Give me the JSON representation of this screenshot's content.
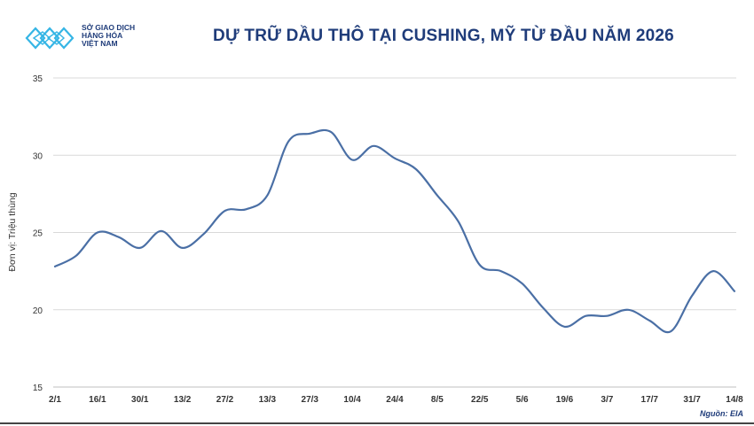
{
  "logo": {
    "icon": "sgd-chevron-logo",
    "line1": "SỞ GIAO DỊCH",
    "line2": "HÀNG HÓA",
    "line3": "VIỆT NAM",
    "color": "#35b5e5"
  },
  "title": "DỰ TRỮ DẦU THÔ TẠI CUSHING, MỸ TỪ ĐẦU NĂM 2026",
  "source": "Nguồn: EIA",
  "colors": {
    "line": "#4a6fa5",
    "title": "#1f3c7a",
    "grid": "#d9d9d9"
  },
  "chart_data": {
    "type": "line",
    "title": "DỰ TRỮ DẦU THÔ TẠI CUSHING, MỸ TỪ ĐẦU NĂM 2026",
    "xlabel": "",
    "ylabel": "Đơn vị: Triệu thùng",
    "ylim": [
      15,
      35
    ],
    "yticks": [
      "35",
      "30",
      "25",
      "20",
      "15"
    ],
    "grid": true,
    "legend": "none",
    "x_tick_labels": [
      "2/1",
      "16/1",
      "30/1",
      "13/2",
      "27/2",
      "13/3",
      "27/3",
      "10/4",
      "24/4",
      "8/5",
      "22/5",
      "5/6",
      "19/6",
      "3/7",
      "17/7",
      "31/7",
      "14/8"
    ],
    "x": [
      "2/1",
      "9/1",
      "16/1",
      "23/1",
      "30/1",
      "6/2",
      "13/2",
      "20/2",
      "27/2",
      "6/3",
      "13/3",
      "20/3",
      "27/3",
      "3/4",
      "10/4",
      "17/4",
      "24/4",
      "1/5",
      "8/5",
      "15/5",
      "22/5",
      "29/5",
      "5/6",
      "12/6",
      "19/6",
      "26/6",
      "3/7",
      "10/7",
      "17/7",
      "24/7",
      "31/7",
      "7/8",
      "14/8"
    ],
    "series": [
      {
        "values": [
          22.8,
          23.5,
          25.0,
          24.7,
          24.0,
          25.1,
          24.0,
          24.9,
          26.4,
          26.5,
          27.4,
          30.9,
          31.4,
          31.5,
          29.7,
          30.6,
          29.8,
          29.1,
          27.4,
          25.7,
          22.9,
          22.5,
          21.7,
          20.1,
          18.9,
          19.6,
          19.6,
          20.0,
          19.3,
          18.6,
          20.9,
          22.5,
          21.2
        ]
      }
    ]
  }
}
